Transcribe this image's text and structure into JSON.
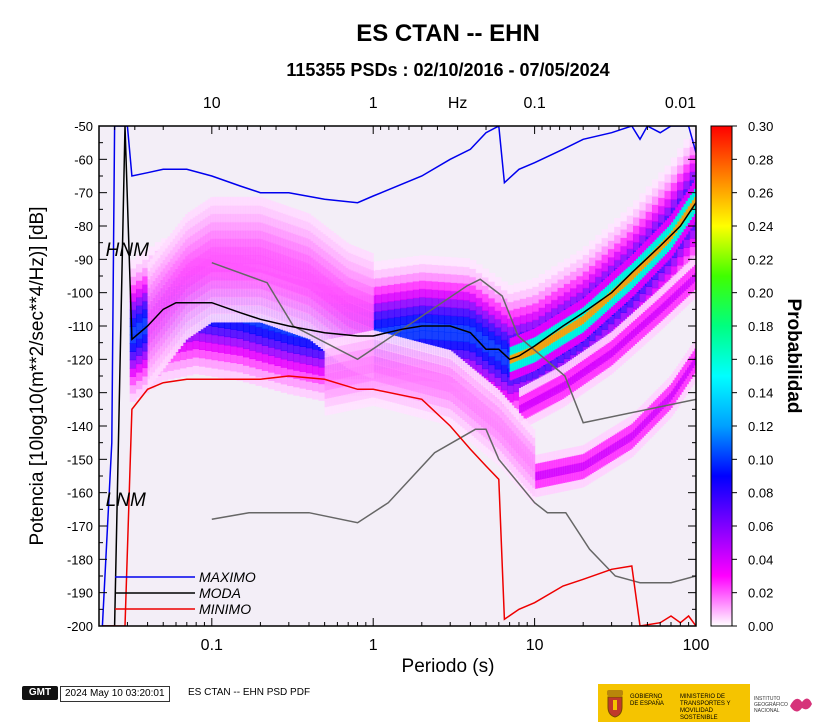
{
  "chart_data": {
    "type": "heatmap",
    "title": "ES CTAN -- EHN",
    "subtitle": "115355 PSDs : 02/10/2016 - 07/05/2024",
    "xlabel": "Periodo (s)",
    "ylabel": "Potencia [10log10(m**2/sec**4/Hz)] [dB]",
    "x_scale": "log",
    "xlim": [
      0.02,
      100
    ],
    "ylim": [
      -200,
      -50
    ],
    "x_ticks": [
      0.1,
      1,
      10,
      100
    ],
    "x_tick_labels": [
      "0.1",
      "1",
      "10",
      "100"
    ],
    "y_ticks": [
      -200,
      -190,
      -180,
      -170,
      -160,
      -150,
      -140,
      -130,
      -120,
      -110,
      -100,
      -90,
      -80,
      -70,
      -60,
      -50
    ],
    "y_tick_labels": [
      "-200",
      "-190",
      "-180",
      "-170",
      "-160",
      "-150",
      "-140",
      "-130",
      "-120",
      "-110",
      "-100",
      "-90",
      "-80",
      "-70",
      "-60",
      "-50"
    ],
    "top_axis": {
      "label": "Hz",
      "ticks": [
        10,
        1,
        0.1,
        0.01
      ],
      "tick_labels": [
        "10",
        "1",
        "0.1",
        "0.01"
      ]
    },
    "colorbar": {
      "label": "Probabilidad",
      "min": 0,
      "max": 0.3,
      "ticks": [
        0.0,
        0.02,
        0.04,
        0.06,
        0.08,
        0.1,
        0.12,
        0.14,
        0.16,
        0.18,
        0.2,
        0.22,
        0.24,
        0.26,
        0.28,
        0.3
      ],
      "tick_labels": [
        "0.00",
        "0.02",
        "0.04",
        "0.06",
        "0.08",
        "0.10",
        "0.12",
        "0.14",
        "0.16",
        "0.18",
        "0.20",
        "0.22",
        "0.24",
        "0.26",
        "0.28",
        "0.30"
      ],
      "colors": [
        "#ffffff",
        "#ff00ff",
        "#8000ff",
        "#0000ff",
        "#00a0ff",
        "#00ffff",
        "#00ff80",
        "#40ff00",
        "#ffff00",
        "#ff8000",
        "#ff0000"
      ]
    },
    "density_bands": [
      {
        "points": [
          [
            0.031,
            -113
          ],
          [
            0.05,
            -106
          ],
          [
            0.08,
            -104
          ],
          [
            0.15,
            -106
          ],
          [
            0.3,
            -110
          ],
          [
            0.6,
            -113
          ],
          [
            1,
            -113
          ],
          [
            2,
            -111
          ],
          [
            4,
            -112
          ],
          [
            7,
            -120
          ],
          [
            10,
            -118
          ],
          [
            20,
            -109
          ],
          [
            40,
            -96
          ],
          [
            70,
            -83
          ],
          [
            100,
            -72
          ]
        ],
        "width": 8,
        "peak": 0.1
      },
      {
        "points": [
          [
            7,
            -120
          ],
          [
            10,
            -117
          ],
          [
            20,
            -108
          ],
          [
            40,
            -95
          ],
          [
            70,
            -83
          ],
          [
            100,
            -72
          ]
        ],
        "width": 2.5,
        "peak": 0.26
      },
      {
        "points": [
          [
            8,
            -135
          ],
          [
            15,
            -128
          ],
          [
            30,
            -118
          ],
          [
            60,
            -105
          ],
          [
            100,
            -95
          ]
        ],
        "width": 2.5,
        "peak": 0.04
      },
      {
        "points": [
          [
            10,
            -155
          ],
          [
            20,
            -152
          ],
          [
            40,
            -143
          ],
          [
            70,
            -131
          ],
          [
            100,
            -120
          ]
        ],
        "width": 2.5,
        "peak": 0.04
      },
      {
        "points": [
          [
            0.04,
            -110
          ],
          [
            0.07,
            -95
          ],
          [
            0.1,
            -90
          ],
          [
            0.2,
            -90
          ],
          [
            0.4,
            -95
          ],
          [
            0.7,
            -104
          ],
          [
            1,
            -107
          ]
        ],
        "width": 10,
        "peak": 0.02
      },
      {
        "points": [
          [
            0.5,
            -125
          ],
          [
            1,
            -122
          ],
          [
            3,
            -128
          ],
          [
            6,
            -140
          ],
          [
            10,
            -152
          ]
        ],
        "width": 6,
        "peak": 0.015
      }
    ],
    "series": [
      {
        "name": "MAXIMO",
        "color": "#0000ee",
        "points": [
          [
            0.021,
            -200
          ],
          [
            0.024,
            -145
          ],
          [
            0.025,
            -50
          ],
          [
            0.028,
            -50
          ],
          [
            0.03,
            -50
          ],
          [
            0.032,
            -65
          ],
          [
            0.04,
            -64
          ],
          [
            0.05,
            -63
          ],
          [
            0.07,
            -63
          ],
          [
            0.1,
            -65
          ],
          [
            0.15,
            -68
          ],
          [
            0.2,
            -70
          ],
          [
            0.3,
            -70
          ],
          [
            0.5,
            -72
          ],
          [
            0.8,
            -73
          ],
          [
            1,
            -71
          ],
          [
            2,
            -65
          ],
          [
            3,
            -60
          ],
          [
            4,
            -57
          ],
          [
            5,
            -52
          ],
          [
            6,
            -50
          ],
          [
            6.5,
            -67
          ],
          [
            8,
            -63
          ],
          [
            10,
            -61
          ],
          [
            15,
            -57
          ],
          [
            20,
            -54
          ],
          [
            30,
            -52
          ],
          [
            40,
            -50
          ],
          [
            45,
            -54
          ],
          [
            50,
            -50
          ],
          [
            60,
            -52
          ],
          [
            70,
            -50
          ],
          [
            90,
            -50
          ],
          [
            100,
            -58
          ]
        ]
      },
      {
        "name": "MODA",
        "color": "#000000",
        "points": [
          [
            0.021,
            -200
          ],
          [
            0.025,
            -200
          ],
          [
            0.029,
            -50
          ],
          [
            0.032,
            -114
          ],
          [
            0.04,
            -110
          ],
          [
            0.05,
            -105
          ],
          [
            0.06,
            -103
          ],
          [
            0.1,
            -103
          ],
          [
            0.15,
            -106
          ],
          [
            0.2,
            -108
          ],
          [
            0.3,
            -110
          ],
          [
            0.5,
            -112
          ],
          [
            0.8,
            -113
          ],
          [
            1,
            -113
          ],
          [
            1.5,
            -111
          ],
          [
            2,
            -110
          ],
          [
            3,
            -110
          ],
          [
            4,
            -112
          ],
          [
            5,
            -117
          ],
          [
            6,
            -117
          ],
          [
            7,
            -120
          ],
          [
            8,
            -119
          ],
          [
            10,
            -116
          ],
          [
            15,
            -110
          ],
          [
            20,
            -106
          ],
          [
            30,
            -100
          ],
          [
            40,
            -94
          ],
          [
            60,
            -86
          ],
          [
            80,
            -80
          ],
          [
            100,
            -73
          ]
        ]
      },
      {
        "name": "MINIMO",
        "color": "#ee0000",
        "points": [
          [
            0.021,
            -200
          ],
          [
            0.029,
            -200
          ],
          [
            0.032,
            -135
          ],
          [
            0.04,
            -129
          ],
          [
            0.05,
            -127
          ],
          [
            0.07,
            -126
          ],
          [
            0.1,
            -126
          ],
          [
            0.2,
            -126
          ],
          [
            0.3,
            -125
          ],
          [
            0.5,
            -126
          ],
          [
            0.8,
            -129
          ],
          [
            1,
            -129
          ],
          [
            2,
            -132
          ],
          [
            3,
            -140
          ],
          [
            4,
            -147
          ],
          [
            5,
            -152
          ],
          [
            6,
            -156
          ],
          [
            6.5,
            -198
          ],
          [
            8,
            -195
          ],
          [
            10,
            -193
          ],
          [
            15,
            -188
          ],
          [
            20,
            -186
          ],
          [
            30,
            -183
          ],
          [
            40,
            -182
          ],
          [
            45,
            -200
          ],
          [
            60,
            -199
          ],
          [
            70,
            -197
          ],
          [
            80,
            -199
          ],
          [
            90,
            -197
          ],
          [
            100,
            -200
          ]
        ]
      }
    ],
    "reference_curves": [
      {
        "name": "NHNM",
        "color": "#666666",
        "points": [
          [
            0.1,
            -91
          ],
          [
            0.22,
            -97
          ],
          [
            0.32,
            -110
          ],
          [
            0.8,
            -120
          ],
          [
            3.8,
            -98
          ],
          [
            4.6,
            -96
          ],
          [
            6.3,
            -101
          ],
          [
            7.9,
            -113
          ],
          [
            15.4,
            -125
          ],
          [
            20,
            -139
          ],
          [
            100,
            -132
          ]
        ]
      },
      {
        "name": "NLNM",
        "color": "#666666",
        "points": [
          [
            0.1,
            -168
          ],
          [
            0.17,
            -166
          ],
          [
            0.4,
            -166
          ],
          [
            0.8,
            -169
          ],
          [
            1.24,
            -163
          ],
          [
            2.4,
            -148
          ],
          [
            4.3,
            -141
          ],
          [
            5,
            -141
          ],
          [
            6,
            -150
          ],
          [
            10,
            -163
          ],
          [
            12,
            -166
          ],
          [
            15.6,
            -166
          ],
          [
            21.9,
            -177
          ],
          [
            31.6,
            -185
          ],
          [
            45,
            -187
          ],
          [
            70,
            -187
          ],
          [
            100,
            -185
          ]
        ]
      }
    ],
    "annotations": [
      {
        "text": "HNM",
        "x": 0.022,
        "y": -89
      },
      {
        "text": "LNM",
        "x": 0.022,
        "y": -164
      }
    ],
    "legend_placement": "bottom-left"
  },
  "footer": {
    "logo": "GMT",
    "timestamp": "2024 May 10 03:20:01",
    "caption": "ES CTAN -- EHN PSD PDF",
    "gov_text_1": "GOBIERNO DE ESPAÑA",
    "gov_text_2": "MINISTERIO DE TRANSPORTES Y MOVILIDAD SOSTENIBLE",
    "gov_text_3": "INSTITUTO GEOGRÁFICO NACIONAL",
    "brand_color": "#f5c400"
  }
}
